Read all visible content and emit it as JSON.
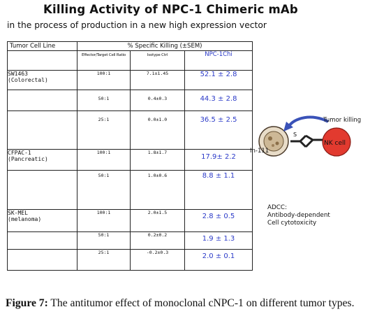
{
  "figure": {
    "title": "Killing Activity of NPC-1 Chimeric mAb",
    "subtitle": "in the process of production in a new high expression vector"
  },
  "table": {
    "col_tumor": "Tumor Cell Line",
    "col_killing": "% Specific Killing (±SEM)",
    "col_ratio": "Effector/Target Cell Ratio",
    "col_isotype": "Isotype Ctrl",
    "col_npc": "NPC-1Chi",
    "groups": [
      {
        "line_name": "SW1463",
        "line_type": "(Colorectal)",
        "rows": [
          {
            "ratio": "100:1",
            "isotype": "7.1±1.45",
            "npc": "52.1 ± 2.8"
          },
          {
            "ratio": "50:1",
            "isotype": "0.4±0.3",
            "npc": "44.3 ± 2.8"
          },
          {
            "ratio": "25:1",
            "isotype": "0.0±1.0",
            "npc": "36.5 ± 2.5"
          }
        ]
      },
      {
        "line_name": "CFPAC-1",
        "line_type": "(Pancreatic)",
        "rows": [
          {
            "ratio": "100:1",
            "isotype": "1.8±1.7",
            "npc": "17.9± 2.2"
          },
          {
            "ratio": "50:1",
            "isotype": "1.0±0.6",
            "npc": "8.8 ± 1.1"
          }
        ]
      },
      {
        "line_name": "SK-MEL",
        "line_type": "(melanoma)",
        "rows": [
          {
            "ratio": "100:1",
            "isotype": "2.0±1.5",
            "npc": "2.8 ± 0.5"
          },
          {
            "ratio": "50:1",
            "isotype": "0.2±0.2",
            "npc": "1.9 ± 1.3"
          },
          {
            "ratio": "25:1",
            "isotype": "-0.2±0.3",
            "npc": "2.0 ± 0.1"
          }
        ]
      }
    ]
  },
  "diagram": {
    "tumor_killing": "Tumor killing",
    "in111": "In-111",
    "nk_cell": "NK cell",
    "adcc_l1": "ADCC:",
    "adcc_l2": "Antibody-dependent",
    "adcc_l3": "Cell cytotoxicity"
  },
  "caption": {
    "label": "Figure 7:",
    "text": " The antitumor effect of monoclonal cNPC-1 on different tumor types."
  }
}
